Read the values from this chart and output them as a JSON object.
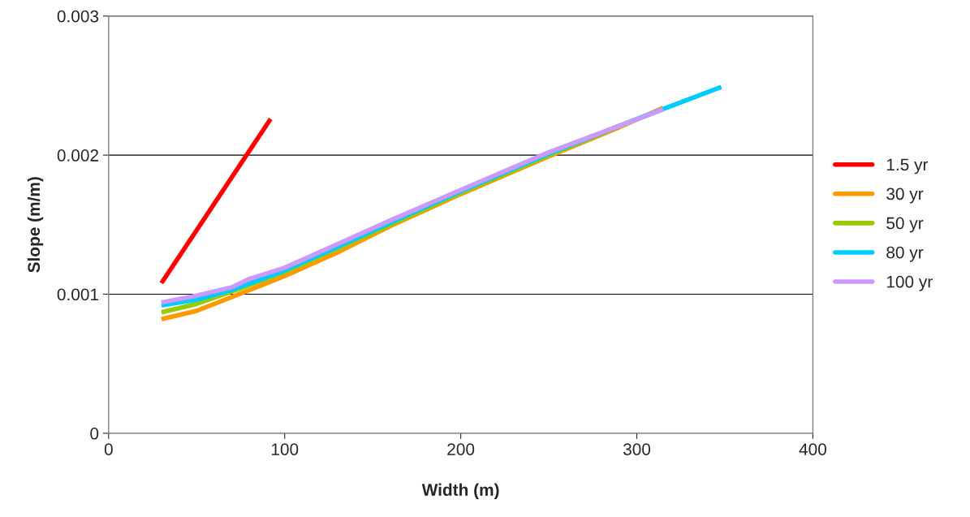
{
  "chart_data": {
    "type": "line",
    "xlabel": "Width (m)",
    "ylabel": "Slope (m/m)",
    "xlim": [
      0,
      400
    ],
    "xticks": [
      0,
      100,
      200,
      300,
      400
    ],
    "ylim": [
      0,
      0.003
    ],
    "yticks": [
      0,
      0.001,
      0.002,
      0.003
    ],
    "grid": "y",
    "legend": "right",
    "marker": "none",
    "line_style": "solid",
    "series": [
      {
        "name": "1.5 yr",
        "color": "#ff0000",
        "x": [
          30,
          92
        ],
        "values": [
          0.00108,
          0.00226
        ]
      },
      {
        "name": "30 yr",
        "color": "#ff9900",
        "x": [
          30,
          50,
          70,
          100,
          130,
          160,
          200,
          250,
          290,
          315
        ],
        "values": [
          0.00082,
          0.00088,
          0.00098,
          0.00113,
          0.0013,
          0.00149,
          0.00172,
          0.00199,
          0.0022,
          0.00234
        ]
      },
      {
        "name": "50 yr",
        "color": "#99cc00",
        "x": [
          30,
          50,
          70,
          100,
          130,
          160,
          200,
          250,
          290,
          315
        ],
        "values": [
          0.00087,
          0.00093,
          0.00102,
          0.00116,
          0.00133,
          0.0015,
          0.00173,
          0.002,
          0.00221,
          0.00233
        ]
      },
      {
        "name": "80 yr",
        "color": "#00ccff",
        "x": [
          30,
          50,
          70,
          100,
          130,
          175,
          200,
          250,
          300,
          348
        ],
        "values": [
          0.00092,
          0.00096,
          0.00103,
          0.00117,
          0.00134,
          0.0016,
          0.00174,
          0.00201,
          0.00226,
          0.00249
        ]
      },
      {
        "name": "100 yr",
        "color": "#cc99ff",
        "x": [
          30,
          50,
          70,
          80,
          100,
          130,
          160,
          200,
          250,
          290,
          315
        ],
        "values": [
          0.00094,
          0.00099,
          0.00105,
          0.00111,
          0.00119,
          0.00136,
          0.00153,
          0.00175,
          0.00202,
          0.00221,
          0.00233
        ]
      }
    ]
  }
}
